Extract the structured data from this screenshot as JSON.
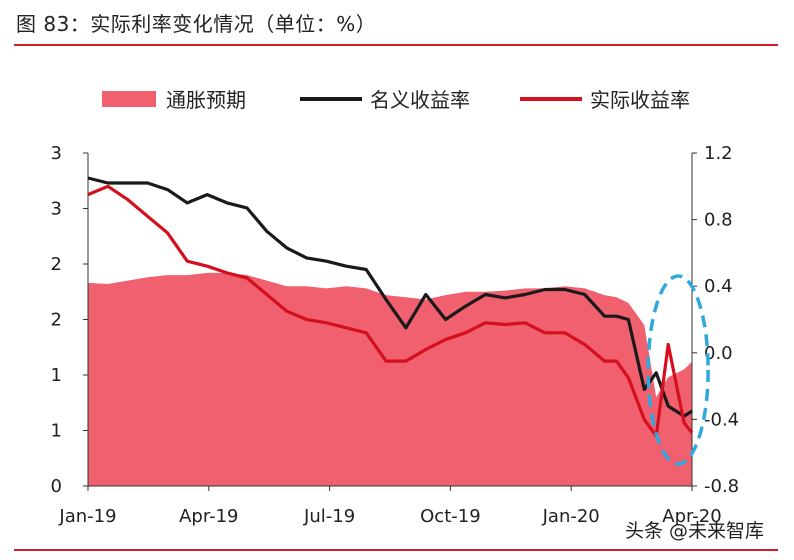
{
  "title": "图 83：实际利率变化情况（单位：%）",
  "watermark": "头条 @未来智库",
  "colors": {
    "expectation": "#f0606e",
    "nominal": "#1a1a1a",
    "real": "#d40f1e",
    "ellipse": "#2fa8e0",
    "rule": "#cc1f2a"
  },
  "chart_data": {
    "type": "line",
    "title": "",
    "legend": {
      "placement": "top",
      "entries": [
        "通胀预期",
        "名义收益率",
        "实际收益率"
      ]
    },
    "x_ticks": [
      "Jan-19",
      "Apr-19",
      "Jul-19",
      "Oct-19",
      "Jan-20",
      "Apr-20"
    ],
    "x_range": [
      0,
      15.2
    ],
    "left_axis": {
      "tick_labels": [
        "0",
        "1",
        "1",
        "2",
        "2",
        "3",
        "3"
      ],
      "ylim": [
        0,
        3
      ]
    },
    "right_axis": {
      "tick_labels": [
        "-0.8",
        "-0.4",
        "0.0",
        "0.4",
        "0.8",
        "1.2"
      ],
      "ylim": [
        -0.8,
        1.2
      ]
    },
    "series": [
      {
        "name": "通胀预期",
        "type": "area",
        "axis": "left",
        "x": [
          0,
          0.5,
          1,
          1.5,
          2,
          2.5,
          3,
          3.5,
          4,
          4.5,
          5,
          5.5,
          6,
          6.5,
          7,
          7.5,
          8,
          8.5,
          9,
          9.5,
          10,
          10.5,
          11,
          11.5,
          12,
          12.5,
          13,
          13.3,
          13.6,
          14,
          14.3,
          14.6,
          15,
          15.2
        ],
        "values": [
          1.83,
          1.82,
          1.85,
          1.88,
          1.9,
          1.9,
          1.92,
          1.92,
          1.9,
          1.85,
          1.8,
          1.8,
          1.78,
          1.8,
          1.78,
          1.72,
          1.7,
          1.68,
          1.72,
          1.75,
          1.75,
          1.76,
          1.78,
          1.78,
          1.8,
          1.78,
          1.72,
          1.7,
          1.65,
          1.45,
          0.8,
          0.98,
          1.05,
          1.12
        ]
      },
      {
        "name": "名义收益率",
        "type": "line",
        "axis": "right",
        "x": [
          0,
          0.5,
          1,
          1.5,
          2,
          2.5,
          3,
          3.5,
          4,
          4.5,
          5,
          5.5,
          6,
          6.5,
          7,
          7.5,
          8,
          8.5,
          9,
          9.5,
          10,
          10.5,
          11,
          11.5,
          12,
          12.5,
          13,
          13.3,
          13.6,
          14,
          14.3,
          14.6,
          15,
          15.2
        ],
        "values": [
          1.05,
          1.02,
          1.02,
          1.02,
          0.98,
          0.9,
          0.95,
          0.9,
          0.87,
          0.73,
          0.63,
          0.57,
          0.55,
          0.52,
          0.5,
          0.32,
          0.15,
          0.35,
          0.2,
          0.28,
          0.35,
          0.33,
          0.35,
          0.38,
          0.38,
          0.35,
          0.22,
          0.22,
          0.2,
          -0.22,
          -0.12,
          -0.32,
          -0.38,
          -0.35
        ]
      },
      {
        "name": "实际收益率",
        "type": "line",
        "axis": "right",
        "x": [
          0,
          0.5,
          1,
          1.5,
          2,
          2.5,
          3,
          3.5,
          4,
          4.5,
          5,
          5.5,
          6,
          6.5,
          7,
          7.5,
          8,
          8.5,
          9,
          9.5,
          10,
          10.5,
          11,
          11.5,
          12,
          12.5,
          13,
          13.3,
          13.6,
          14,
          14.3,
          14.6,
          15,
          15.2
        ],
        "values": [
          0.95,
          1.0,
          0.92,
          0.82,
          0.72,
          0.55,
          0.52,
          0.48,
          0.45,
          0.35,
          0.25,
          0.2,
          0.18,
          0.15,
          0.12,
          -0.05,
          -0.05,
          0.02,
          0.08,
          0.12,
          0.18,
          0.17,
          0.18,
          0.12,
          0.12,
          0.05,
          -0.05,
          -0.05,
          -0.15,
          -0.4,
          -0.5,
          0.05,
          -0.42,
          -0.48
        ]
      }
    ],
    "annotation": {
      "shape": "dashed-ellipse",
      "around_x": [
        14.0,
        15.2
      ]
    }
  }
}
